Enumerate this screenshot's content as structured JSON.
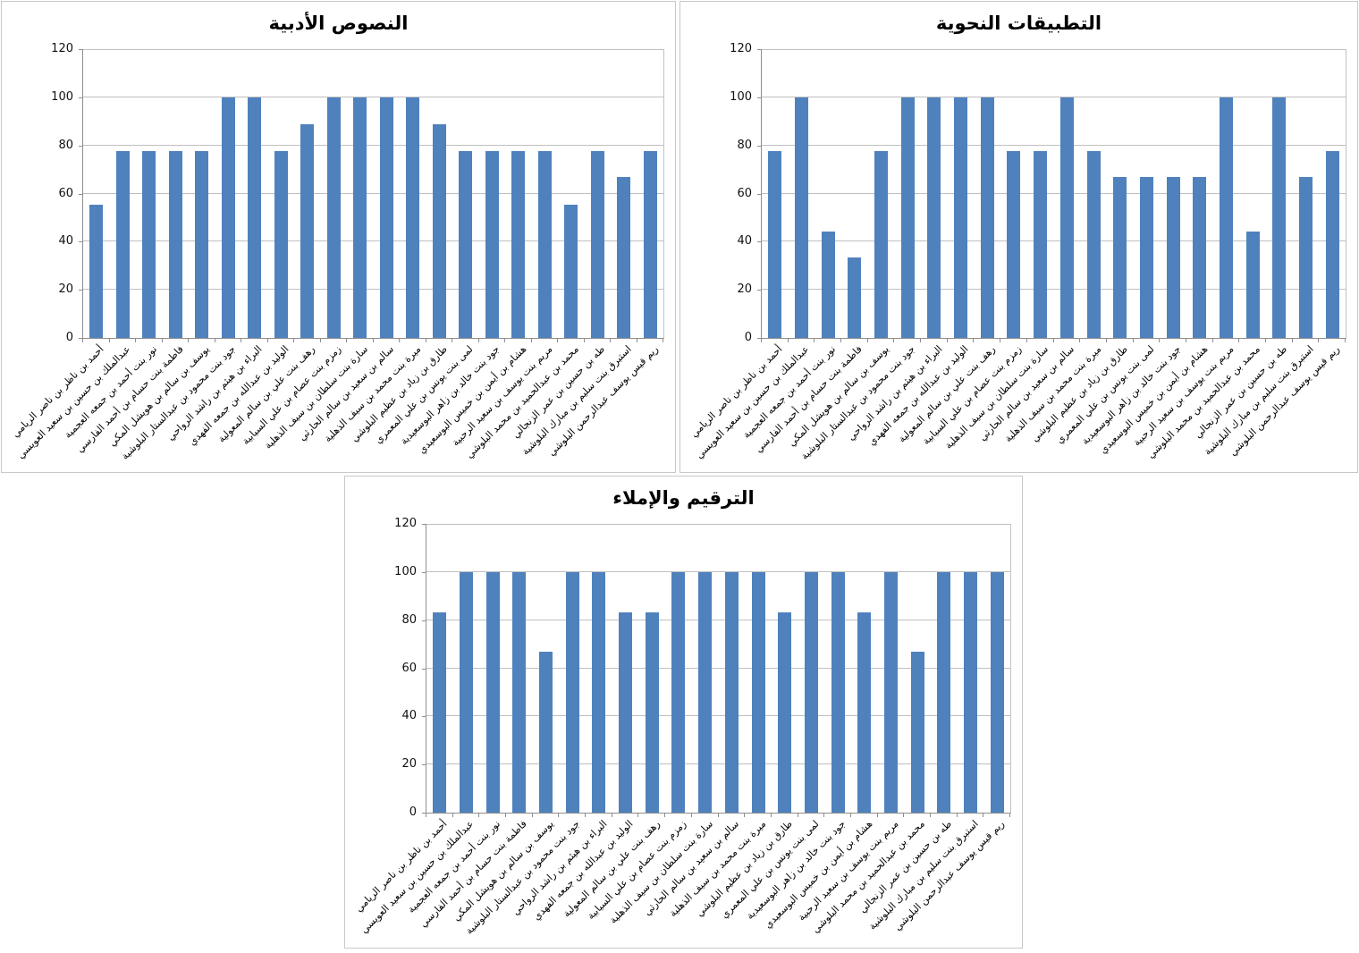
{
  "colors": {
    "bar": "#4F81BD",
    "gridline": "#bfbfbf",
    "axis": "#8e8e8e",
    "panel_border": "#c8c8c8",
    "text": "#000000"
  },
  "chart_data": [
    {
      "type": "bar",
      "title": "النصوص الأدبية",
      "xlabel": "",
      "ylabel": "",
      "ylim": [
        0,
        120
      ],
      "yticks": [
        0,
        20,
        40,
        60,
        80,
        100,
        120
      ],
      "grid": true,
      "legend": false,
      "categories": [
        "أحمد بن ناظر بن ناصر الريامي",
        "عبدالملك بن حسين بن سعيد العويسي",
        "نور بنت أحمد بن جمعه العجمية",
        "فاطمة بنت حسام بن أحمد الفارسي",
        "يوسف بن سالم بن هويشل المكي",
        "جود بنت محمود بن عبدالستار البلوشية",
        "البراء بن هيثم بن راشد الرواحي",
        "الوليد بن عبدالله بن جمعه الفهدي",
        "رهف بنت علي بن سالم المعولية",
        "زمزم بنت عصام بن علي السيابية",
        "سارة بنت سلطان بن سيف الذهلية",
        "سالم بن سعيد بن سالم الحارثي",
        "ميرة بنت محمد بن سيف الذهلية",
        "طارق بن زياد بن عظيم البلوشي",
        "لمى بنت يونس بن علي المعمري",
        "جود بنت خالد بن زاهر البوسعيدية",
        "هشام بن أيمن بن خميس البوسعيدي",
        "مريم بنت يوسف بن سعيد الرحبية",
        "محمد بن عبدالحميد بن محمد البلوشي",
        "طه بن حسين بن عمر الزنجالي",
        "استبرق بنت سليم بن مبارك البلوشية",
        "ريم قيس يوسف عبدالرحمن البلوشي"
      ],
      "values": [
        55.5,
        77.8,
        77.8,
        77.8,
        77.8,
        100,
        100,
        77.8,
        88.9,
        100,
        100,
        100,
        100,
        88.9,
        77.8,
        77.8,
        77.8,
        77.8,
        55.5,
        77.8,
        66.7,
        77.8
      ]
    },
    {
      "type": "bar",
      "title": "التطبيقات النحوية",
      "xlabel": "",
      "ylabel": "",
      "ylim": [
        0,
        120
      ],
      "yticks": [
        0,
        20,
        40,
        60,
        80,
        100,
        120
      ],
      "grid": true,
      "legend": false,
      "categories": [
        "أحمد بن ناظر بن ناصر الريامي",
        "عبدالملك بن حسين بن سعيد العويسي",
        "نور بنت أحمد بن جمعه العجمية",
        "فاطمة بنت حسام بن أحمد الفارسي",
        "يوسف بن سالم بن هويشل المكي",
        "جود بنت محمود بن عبدالستار البلوشية",
        "البراء بن هيثم بن راشد الرواحي",
        "الوليد بن عبدالله بن جمعه الفهدي",
        "رهف بنت علي بن سالم المعولية",
        "زمزم بنت عصام بن علي السيابية",
        "سارة بنت سلطان بن سيف الذهلية",
        "سالم بن سعيد بن سالم الحارثي",
        "ميرة بنت محمد بن سيف الذهلية",
        "طارق بن زياد بن عظيم البلوشي",
        "لمى بنت يونس بن علي المعمري",
        "جود بنت خالد بن زاهر البوسعيدية",
        "هشام بن أيمن بن خميس البوسعيدي",
        "مريم بنت يوسف بن سعيد الرحبية",
        "محمد بن عبدالحميد بن محمد البلوشي",
        "طه بن حسين بن عمر الزنجالي",
        "استبرق بنت سليم بن مبارك البلوشية",
        "ريم قيس يوسف عبدالرحمن البلوشي"
      ],
      "values": [
        77.8,
        100,
        44.4,
        33.3,
        77.8,
        100,
        100,
        100,
        100,
        77.8,
        77.8,
        100,
        77.8,
        66.7,
        66.7,
        66.7,
        66.7,
        100,
        44.4,
        100,
        66.7,
        77.8
      ]
    },
    {
      "type": "bar",
      "title": "الترقيم والإملاء",
      "xlabel": "",
      "ylabel": "",
      "ylim": [
        0,
        120
      ],
      "yticks": [
        0,
        20,
        40,
        60,
        80,
        100,
        120
      ],
      "grid": true,
      "legend": false,
      "categories": [
        "أحمد بن ناظر بن ناصر الريامي",
        "عبدالملك بن حسين بن سعيد العويسي",
        "نور بنت أحمد بن جمعه العجمية",
        "فاطمة بنت حسام بن أحمد الفارسي",
        "يوسف بن سالم بن هويشل المكي",
        "جود بنت محمود بن عبدالستار البلوشية",
        "البراء بن هيثم بن راشد الرواحي",
        "الوليد بن عبدالله بن جمعه الفهدي",
        "رهف بنت علي بن سالم المعولية",
        "زمزم بنت عصام بن علي السيابية",
        "سارة بنت سلطان بن سيف الذهلية",
        "سالم بن سعيد بن سالم الحارثي",
        "ميرة بنت محمد بن سيف الذهلية",
        "طارق بن زياد بن عظيم البلوشي",
        "لمى بنت يونس بن علي المعمري",
        "جود بنت خالد بن زاهر البوسعيدية",
        "هشام بن أيمن بن خميس البوسعيدي",
        "مريم بنت يوسف بن سعيد الرحبية",
        "محمد بن عبدالحميد بن محمد البلوشي",
        "طه بن حسين بن عمر الزنجالي",
        "استبرق بنت سليم بن مبارك البلوشية",
        "ريم قيس يوسف عبدالرحمن البلوشي"
      ],
      "values": [
        83.3,
        100,
        100,
        100,
        66.7,
        100,
        100,
        83.3,
        83.3,
        100,
        100,
        100,
        100,
        83.3,
        100,
        100,
        83.3,
        100,
        66.7,
        100,
        100,
        100
      ]
    }
  ]
}
